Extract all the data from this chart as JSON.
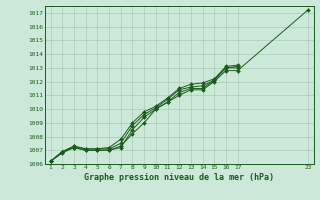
{
  "title": "Graphe pression niveau de la mer (hPa)",
  "bg_color": "#cce8d8",
  "grid_color": "#aacbb8",
  "line_color": "#1a5c1a",
  "ylim": [
    1006,
    1017.5
  ],
  "yticks": [
    1006,
    1007,
    1008,
    1009,
    1010,
    1011,
    1012,
    1013,
    1014,
    1015,
    1016,
    1017
  ],
  "xlim": [
    0.5,
    23.5
  ],
  "xticks": [
    1,
    2,
    3,
    4,
    5,
    6,
    7,
    8,
    9,
    10,
    11,
    12,
    13,
    14,
    15,
    16,
    17,
    23
  ],
  "series": [
    {
      "x": [
        1,
        2,
        3,
        4,
        5,
        6,
        7,
        8,
        9,
        10,
        11,
        12,
        13,
        14,
        15,
        16,
        17,
        23
      ],
      "y": [
        1006.2,
        1006.8,
        1007.2,
        1007.0,
        1007.0,
        1007.0,
        1007.2,
        1008.5,
        1009.4,
        1010.0,
        1010.5,
        1011.0,
        1011.4,
        1011.4,
        1012.0,
        1012.8,
        1012.8,
        1017.2
      ],
      "marker": "D",
      "markersize": 2.0,
      "linewidth": 0.7
    },
    {
      "x": [
        1,
        2,
        3,
        4,
        5,
        6,
        7,
        8,
        9,
        10,
        11,
        12,
        13,
        14,
        15,
        16,
        17
      ],
      "y": [
        1006.2,
        1006.9,
        1007.2,
        1007.0,
        1007.0,
        1007.0,
        1007.3,
        1008.2,
        1009.0,
        1010.0,
        1010.5,
        1011.2,
        1011.5,
        1011.5,
        1012.1,
        1013.0,
        1013.0
      ],
      "marker": "D",
      "markersize": 2.0,
      "linewidth": 0.7
    },
    {
      "x": [
        1,
        2,
        3,
        4,
        5,
        6,
        7,
        8,
        9,
        10,
        11,
        12,
        13,
        14,
        15,
        16,
        17
      ],
      "y": [
        1006.2,
        1006.9,
        1007.3,
        1007.1,
        1007.1,
        1007.1,
        1007.5,
        1008.8,
        1009.6,
        1010.1,
        1010.7,
        1011.4,
        1011.6,
        1011.7,
        1012.1,
        1013.0,
        1013.1
      ],
      "marker": "D",
      "markersize": 2.0,
      "linewidth": 0.7
    },
    {
      "x": [
        1,
        2,
        3,
        4,
        5,
        6,
        7,
        8,
        9,
        10,
        11,
        12,
        13,
        14,
        15,
        16,
        17
      ],
      "y": [
        1006.2,
        1006.9,
        1007.3,
        1007.1,
        1007.1,
        1007.2,
        1007.8,
        1009.0,
        1009.8,
        1010.2,
        1010.8,
        1011.5,
        1011.8,
        1011.9,
        1012.2,
        1013.1,
        1013.2
      ],
      "marker": "D",
      "markersize": 2.0,
      "linewidth": 0.7
    }
  ]
}
